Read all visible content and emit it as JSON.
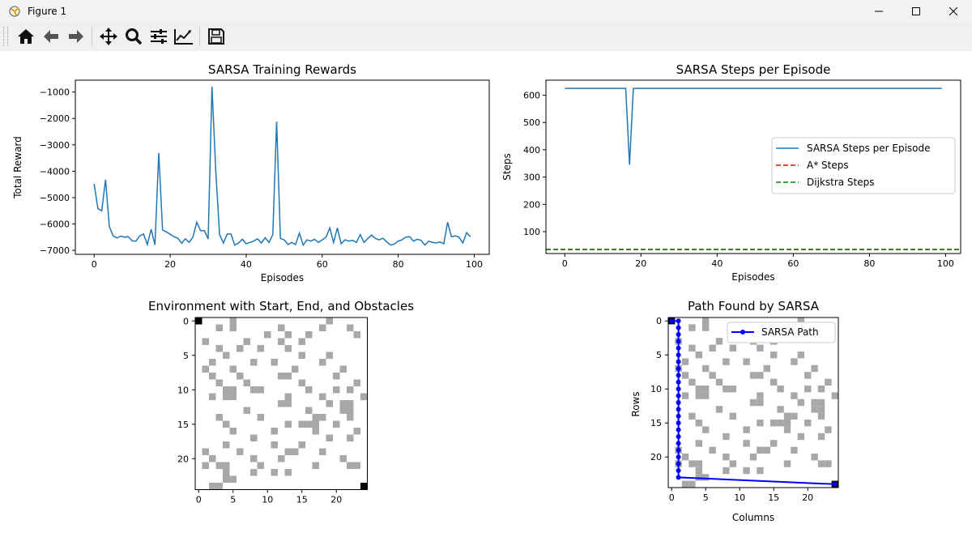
{
  "window": {
    "title": "Figure 1"
  },
  "toolbar": {
    "buttons": [
      "home-icon",
      "back-arrow-icon",
      "forward-arrow-icon",
      "pan-icon",
      "zoom-icon",
      "configure-subplots-icon",
      "edit-axis-icon",
      "save-icon"
    ]
  },
  "chart_data": [
    {
      "type": "line",
      "title": "SARSA Training Rewards",
      "xlabel": "Episodes",
      "ylabel": "Total Reward",
      "xlim": [
        -4.95,
        103.95
      ],
      "ylim": [
        -7150,
        -550
      ],
      "xticks": [
        "0",
        "20",
        "40",
        "60",
        "80",
        "100"
      ],
      "yticks": [
        "−1000",
        "−2000",
        "−3000",
        "−4000",
        "−5000",
        "−6000",
        "−7000"
      ],
      "color": "#1f77b4",
      "series": [
        {
          "values": [
            -4480,
            -5420,
            -5500,
            -4320,
            -6100,
            -6450,
            -6530,
            -6460,
            -6500,
            -6480,
            -6640,
            -6650,
            -6450,
            -6380,
            -6780,
            -6200,
            -6790,
            -3310,
            -6230,
            -6300,
            -6390,
            -6480,
            -6540,
            -6730,
            -6560,
            -6700,
            -6500,
            -5930,
            -6250,
            -6250,
            -6570,
            -800,
            -4000,
            -6400,
            -6720,
            -6380,
            -6380,
            -6800,
            -6720,
            -6580,
            -6750,
            -6700,
            -6650,
            -6560,
            -6720,
            -6520,
            -6700,
            -6400,
            -2120,
            -6550,
            -6600,
            -6780,
            -6700,
            -6780,
            -6350,
            -6800,
            -6600,
            -6650,
            -6580,
            -6700,
            -6600,
            -6500,
            -6150,
            -6700,
            -6150,
            -6750,
            -6600,
            -6650,
            -6620,
            -6700,
            -6400,
            -6700,
            -6550,
            -6420,
            -6550,
            -6600,
            -6540,
            -6680,
            -6800,
            -6760,
            -6650,
            -6600,
            -6500,
            -6480,
            -6650,
            -6580,
            -6620,
            -6800,
            -6650,
            -6700,
            -6720,
            -6680,
            -6750,
            -5930,
            -6480,
            -6450,
            -6500,
            -6720,
            -6330,
            -6480
          ]
        }
      ]
    },
    {
      "type": "line",
      "title": "SARSA Steps per Episode",
      "xlabel": "Episodes",
      "ylabel": "Steps",
      "xlim": [
        -4.95,
        103.95
      ],
      "ylim": [
        20,
        655
      ],
      "xticks": [
        "0",
        "20",
        "40",
        "60",
        "80",
        "100"
      ],
      "yticks": [
        "100",
        "200",
        "300",
        "400",
        "500",
        "600"
      ],
      "series": [
        {
          "name": "SARSA Steps per Episode",
          "color": "#1f77b4",
          "style": "solid",
          "values": [
            625,
            625,
            625,
            625,
            625,
            625,
            625,
            625,
            625,
            625,
            625,
            625,
            625,
            625,
            625,
            625,
            625,
            345,
            625,
            625,
            625,
            625,
            625,
            625,
            625,
            625,
            625,
            625,
            625,
            625,
            625,
            625,
            625,
            625,
            625,
            625,
            625,
            625,
            625,
            625,
            625,
            625,
            625,
            625,
            625,
            625,
            625,
            625,
            625,
            625,
            625,
            625,
            625,
            625,
            625,
            625,
            625,
            625,
            625,
            625,
            625,
            625,
            625,
            625,
            625,
            625,
            625,
            625,
            625,
            625,
            625,
            625,
            625,
            625,
            625,
            625,
            625,
            625,
            625,
            625,
            625,
            625,
            625,
            625,
            625,
            625,
            625,
            625,
            625,
            625,
            625,
            625,
            625,
            625,
            625,
            625,
            625,
            625,
            625,
            625
          ]
        },
        {
          "name": "A* Steps",
          "color": "#ff0000",
          "style": "dashed",
          "constant": 35
        },
        {
          "name": "Dijkstra Steps",
          "color": "#008000",
          "style": "dashed",
          "constant": 35
        }
      ],
      "legend": "center-right"
    },
    {
      "type": "heatmap",
      "title": "Environment with Start, End, and Obstacles",
      "grid_size": 25,
      "xticks": [
        "0",
        "5",
        "10",
        "15",
        "20"
      ],
      "yticks": [
        "0",
        "5",
        "10",
        "15",
        "20"
      ],
      "colors": {
        "obstacle": "#a8a8a8",
        "free": "#ffffff",
        "start_end": "#000000"
      },
      "start": [
        0,
        0
      ],
      "end": [
        24,
        24
      ],
      "obstacles": [
        [
          0,
          5
        ],
        [
          0,
          19
        ],
        [
          1,
          3
        ],
        [
          1,
          5
        ],
        [
          1,
          12
        ],
        [
          1,
          18
        ],
        [
          1,
          22
        ],
        [
          2,
          10
        ],
        [
          2,
          13
        ],
        [
          2,
          16
        ],
        [
          2,
          23
        ],
        [
          3,
          1
        ],
        [
          3,
          7
        ],
        [
          3,
          12
        ],
        [
          3,
          15
        ],
        [
          4,
          3
        ],
        [
          4,
          6
        ],
        [
          4,
          9
        ],
        [
          4,
          13
        ],
        [
          5,
          4
        ],
        [
          5,
          15
        ],
        [
          5,
          19
        ],
        [
          6,
          2
        ],
        [
          6,
          8
        ],
        [
          6,
          11
        ],
        [
          6,
          18
        ],
        [
          7,
          1
        ],
        [
          7,
          5
        ],
        [
          7,
          14
        ],
        [
          7,
          21
        ],
        [
          8,
          2
        ],
        [
          8,
          6
        ],
        [
          8,
          12
        ],
        [
          8,
          13
        ],
        [
          8,
          20
        ],
        [
          9,
          3
        ],
        [
          9,
          7
        ],
        [
          9,
          15
        ],
        [
          9,
          23
        ],
        [
          10,
          4
        ],
        [
          10,
          5
        ],
        [
          10,
          8
        ],
        [
          10,
          9
        ],
        [
          10,
          16
        ],
        [
          10,
          20
        ],
        [
          10,
          22
        ],
        [
          11,
          2
        ],
        [
          11,
          4
        ],
        [
          11,
          5
        ],
        [
          11,
          13
        ],
        [
          11,
          18
        ],
        [
          11,
          24
        ],
        [
          12,
          12
        ],
        [
          12,
          13
        ],
        [
          12,
          19
        ],
        [
          12,
          21
        ],
        [
          12,
          22
        ],
        [
          13,
          7
        ],
        [
          13,
          16
        ],
        [
          13,
          21
        ],
        [
          13,
          22
        ],
        [
          14,
          3
        ],
        [
          14,
          9
        ],
        [
          14,
          17
        ],
        [
          14,
          18
        ],
        [
          14,
          22
        ],
        [
          15,
          4
        ],
        [
          15,
          13
        ],
        [
          15,
          15
        ],
        [
          15,
          16
        ],
        [
          15,
          17
        ],
        [
          15,
          20
        ],
        [
          16,
          5
        ],
        [
          16,
          11
        ],
        [
          16,
          17
        ],
        [
          16,
          23
        ],
        [
          17,
          8
        ],
        [
          17,
          19
        ],
        [
          17,
          22
        ],
        [
          18,
          4
        ],
        [
          18,
          11
        ],
        [
          18,
          15
        ],
        [
          19,
          1
        ],
        [
          19,
          6
        ],
        [
          19,
          13
        ],
        [
          19,
          14
        ],
        [
          19,
          18
        ],
        [
          20,
          2
        ],
        [
          20,
          8
        ],
        [
          20,
          12
        ],
        [
          20,
          21
        ],
        [
          21,
          1
        ],
        [
          21,
          3
        ],
        [
          21,
          4
        ],
        [
          21,
          9
        ],
        [
          21,
          17
        ],
        [
          21,
          22
        ],
        [
          21,
          23
        ],
        [
          22,
          4
        ],
        [
          22,
          8
        ],
        [
          22,
          11
        ],
        [
          22,
          13
        ],
        [
          23,
          4
        ],
        [
          23,
          5
        ],
        [
          24,
          2
        ],
        [
          24,
          3
        ]
      ]
    },
    {
      "type": "line",
      "title": "Path Found by SARSA",
      "xlabel": "Columns",
      "ylabel": "Rows",
      "xticks": [
        "0",
        "5",
        "10",
        "15",
        "20"
      ],
      "yticks": [
        "0",
        "5",
        "10",
        "15",
        "20"
      ],
      "legend": "top-right",
      "series": [
        {
          "name": "SARSA Path",
          "color": "#0000ff",
          "marker": "o",
          "points": [
            [
              0,
              0
            ],
            [
              1,
              0
            ],
            [
              1,
              1
            ],
            [
              1,
              2
            ],
            [
              1,
              3
            ],
            [
              1,
              4
            ],
            [
              1,
              5
            ],
            [
              1,
              6
            ],
            [
              1,
              7
            ],
            [
              1,
              8
            ],
            [
              1,
              9
            ],
            [
              1,
              10
            ],
            [
              1,
              11
            ],
            [
              1,
              12
            ],
            [
              1,
              13
            ],
            [
              1,
              14
            ],
            [
              1,
              15
            ],
            [
              1,
              16
            ],
            [
              1,
              17
            ],
            [
              1,
              18
            ],
            [
              1,
              19
            ],
            [
              1,
              20
            ],
            [
              1,
              21
            ],
            [
              1,
              22
            ],
            [
              1,
              23
            ],
            [
              24,
              24
            ]
          ]
        }
      ]
    }
  ]
}
